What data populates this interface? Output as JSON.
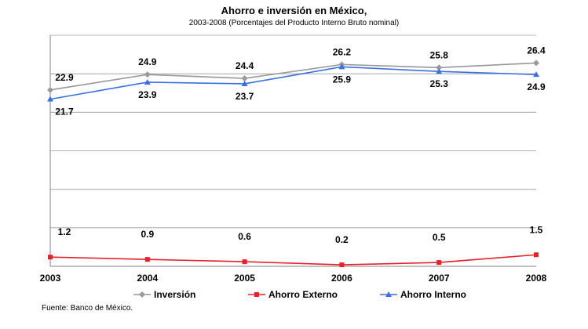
{
  "chart_data": {
    "type": "line",
    "title": "Ahorro e inversión en México,",
    "subtitle": "2003-2008  (Porcentajes del Producto Interno Bruto nominal)",
    "x": [
      "2003",
      "2004",
      "2005",
      "2006",
      "2007",
      "2008"
    ],
    "ylim": [
      0,
      30
    ],
    "grid": true,
    "legend_position": "bottom",
    "series": [
      {
        "name": "Inversión",
        "values": [
          22.9,
          24.9,
          24.4,
          26.2,
          25.8,
          26.4
        ],
        "labels": [
          "22.9",
          "24.9",
          "24.4",
          "26.2",
          "25.8",
          "26.4"
        ],
        "color": "#999999",
        "marker": "diamond"
      },
      {
        "name": "Ahorro Externo",
        "values": [
          1.2,
          0.9,
          0.6,
          0.2,
          0.5,
          1.5
        ],
        "labels": [
          "1.2",
          "0.9",
          "0.6",
          "0.2",
          "0.5",
          "1.5"
        ],
        "color": "#e8202a",
        "marker": "square"
      },
      {
        "name": "Ahorro Interno",
        "values": [
          21.7,
          23.9,
          23.7,
          25.9,
          25.3,
          24.9
        ],
        "labels": [
          "21.7",
          "23.9",
          "23.7",
          "25.9",
          "25.3",
          "24.9"
        ],
        "color": "#3a6fe0",
        "marker": "triangle"
      }
    ],
    "source": "Fuente: Banco de México."
  }
}
